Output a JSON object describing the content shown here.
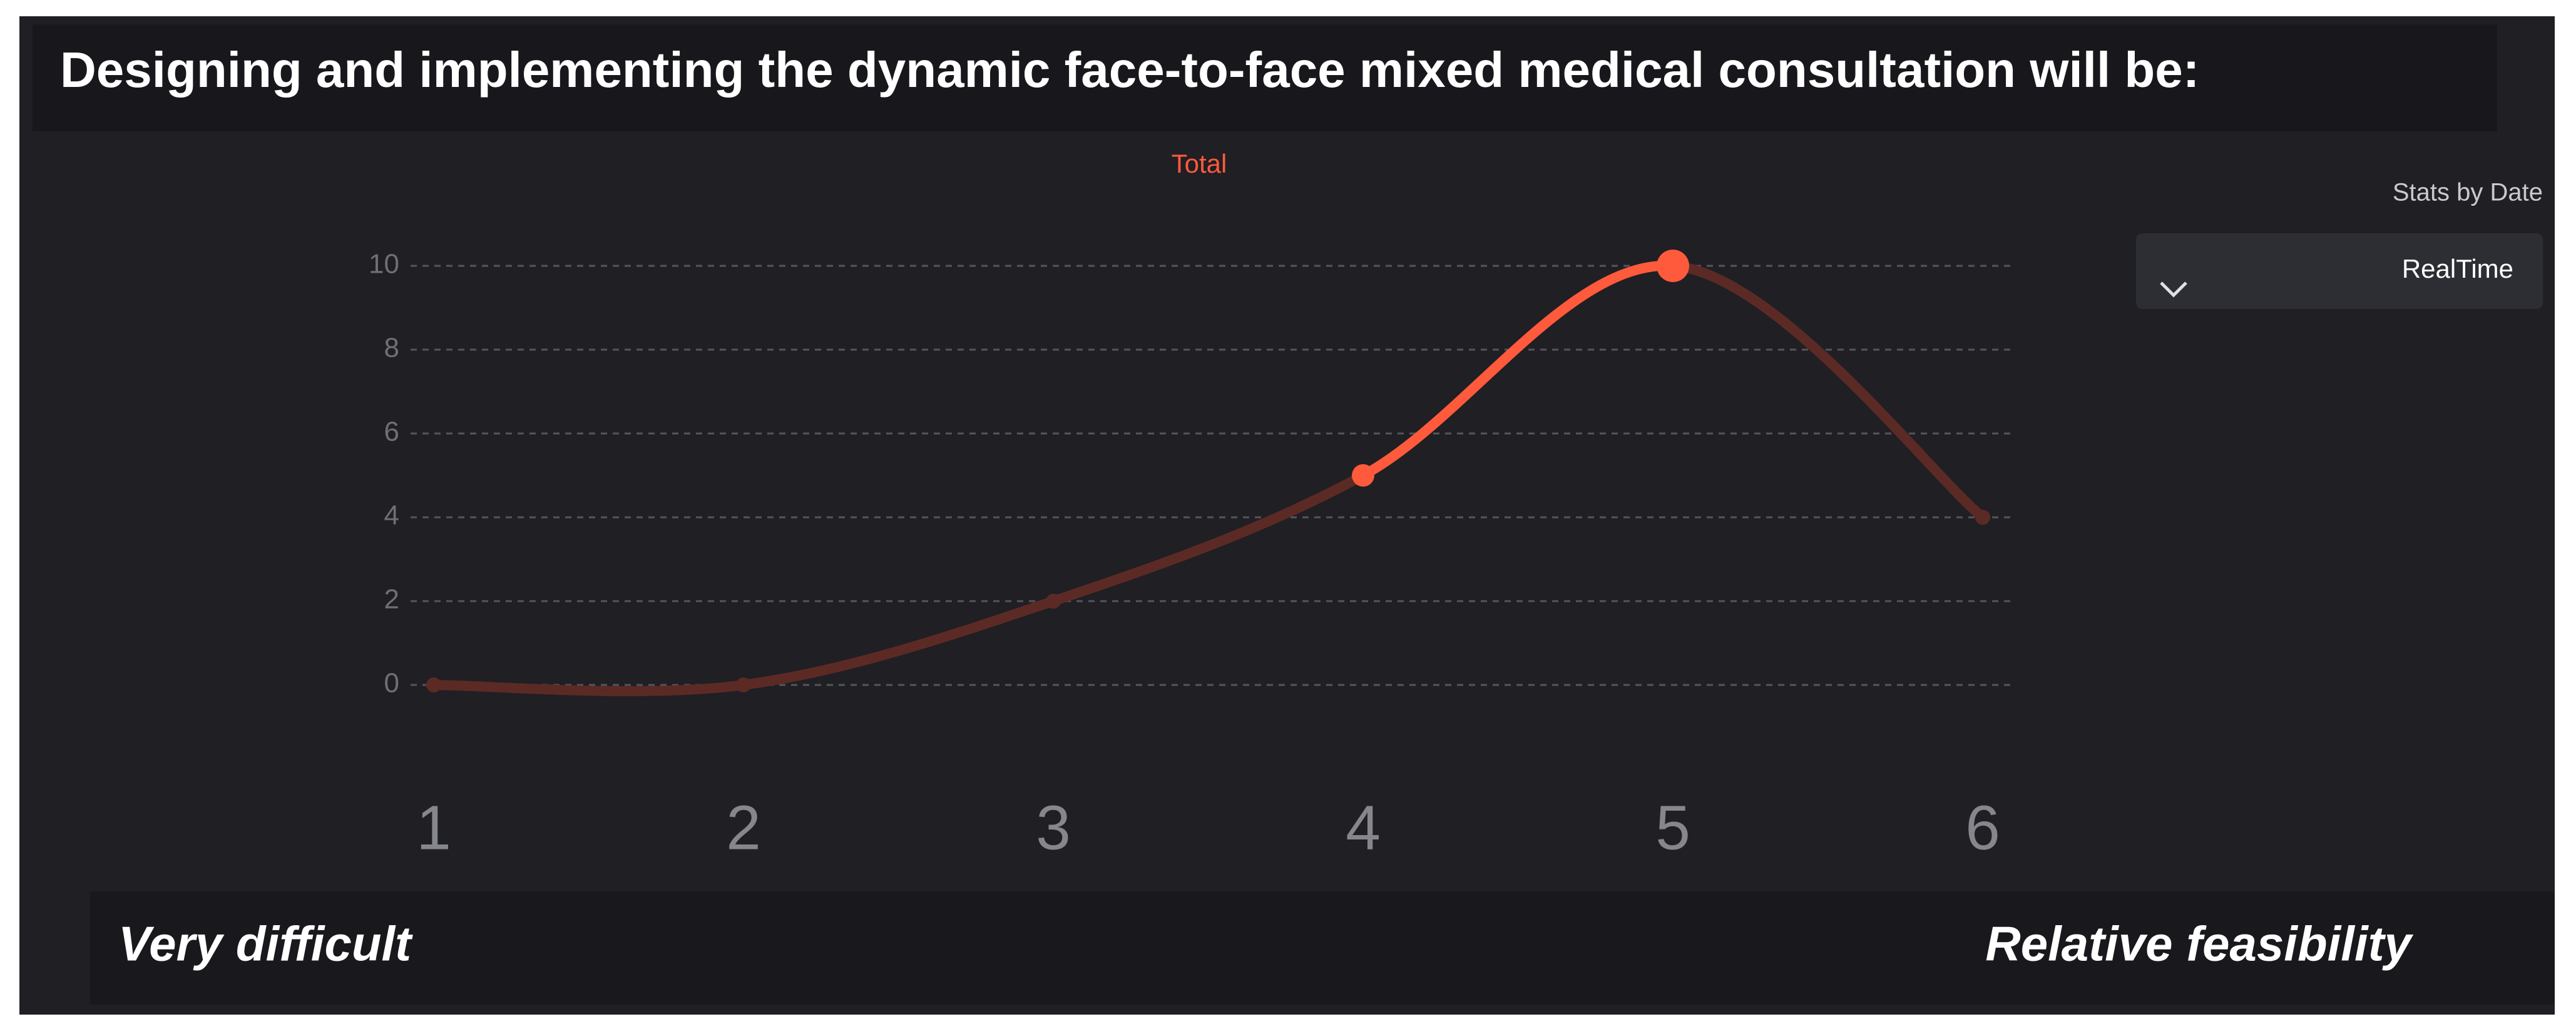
{
  "header": {
    "title": "Designing and implementing the dynamic face-to-face mixed medical consultation will be:"
  },
  "controls": {
    "stats_label": "Stats by Date",
    "dropdown": "RealTime"
  },
  "chart_data": {
    "type": "line",
    "title": "Total",
    "categories": [
      "1",
      "2",
      "3",
      "4",
      "5",
      "6"
    ],
    "values": [
      0,
      0,
      2,
      5,
      10,
      4
    ],
    "color": "#5c2a25",
    "highlight_color": "#ff5a3c",
    "ylim": [
      0,
      10
    ],
    "yticks": [
      0,
      2,
      4,
      6,
      8,
      10
    ],
    "grid": true
  },
  "footer": {
    "left": "Very difficult",
    "right": "Relative feasibility"
  }
}
